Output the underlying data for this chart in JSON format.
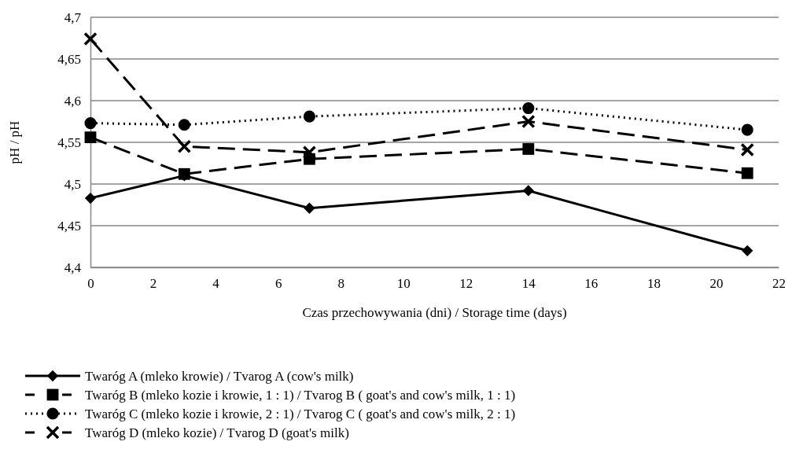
{
  "chart_data": {
    "type": "line",
    "xlabel": "Czas przechowywania (dni) / Storage time (days)",
    "ylabel": "pH / pH",
    "xlim": [
      0,
      22
    ],
    "xticks": [
      {
        "value": 0,
        "label": "0"
      },
      {
        "value": 2,
        "label": "2"
      },
      {
        "value": 4,
        "label": "4"
      },
      {
        "value": 6,
        "label": "6"
      },
      {
        "value": 8,
        "label": "8"
      },
      {
        "value": 10,
        "label": "10"
      },
      {
        "value": 12,
        "label": "12"
      },
      {
        "value": 14,
        "label": "14"
      },
      {
        "value": 16,
        "label": "16"
      },
      {
        "value": 18,
        "label": "18"
      },
      {
        "value": 20,
        "label": "20"
      },
      {
        "value": 22,
        "label": "22"
      }
    ],
    "ylim": [
      4.4,
      4.7
    ],
    "yticks": [
      {
        "value": 4.4,
        "label": "4,4"
      },
      {
        "value": 4.45,
        "label": "4,45"
      },
      {
        "value": 4.5,
        "label": "4,5"
      },
      {
        "value": 4.55,
        "label": "4,55"
      },
      {
        "value": 4.6,
        "label": "4,6"
      },
      {
        "value": 4.65,
        "label": "4,65"
      },
      {
        "value": 4.7,
        "label": "4,7"
      }
    ],
    "grid": "y",
    "legend": "bottom",
    "x": [
      0,
      3,
      7,
      14,
      21
    ],
    "series": [
      {
        "name": "Twaróg A (mleko krowie) / Tvarog A (cow's milk)",
        "color": "#000000",
        "marker": "diamond",
        "line_style": "solid",
        "values": [
          4.483,
          4.51,
          4.471,
          4.492,
          4.42
        ]
      },
      {
        "name": "Twaróg B (mleko kozie i krowie, 1 : 1) / Tvarog B ( goat's and cow's milk, 1 : 1)",
        "color": "#000000",
        "marker": "square",
        "line_style": "dashed",
        "values": [
          4.556,
          4.512,
          4.53,
          4.542,
          4.513
        ]
      },
      {
        "name": "Twaróg C (mleko kozie i krowie, 2 : 1) / Tvarog C ( goat's and cow's milk, 2 : 1)",
        "color": "#000000",
        "marker": "circle",
        "line_style": "dotted",
        "values": [
          4.573,
          4.571,
          4.581,
          4.591,
          4.565
        ]
      },
      {
        "name": "Twaróg D (mleko kozie) / Tvarog D (goat's milk)",
        "color": "#000000",
        "marker": "cross",
        "line_style": "dashed",
        "values": [
          4.674,
          4.545,
          4.538,
          4.575,
          4.541
        ]
      }
    ]
  }
}
